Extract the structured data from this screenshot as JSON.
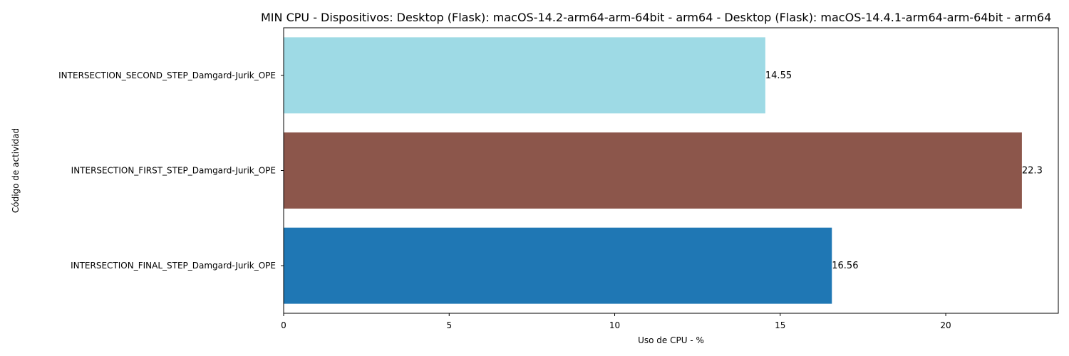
{
  "chart_data": {
    "type": "bar",
    "orientation": "horizontal",
    "title": "MIN CPU - Dispositivos: Desktop (Flask): macOS-14.2-arm64-arm-64bit - arm64 - Desktop (Flask): macOS-14.4.1-arm64-arm-64bit - arm64",
    "xlabel": "Uso de CPU - %",
    "ylabel": "Código de actividad",
    "categories": [
      "INTERSECTION_FINAL_STEP_Damgard-Jurik_OPE",
      "INTERSECTION_FIRST_STEP_Damgard-Jurik_OPE",
      "INTERSECTION_SECOND_STEP_Damgard-Jurik_OPE"
    ],
    "values": [
      16.56,
      22.3,
      14.55
    ],
    "value_labels": [
      "16.56",
      "22.3",
      "14.55"
    ],
    "colors": [
      "#1f77b4",
      "#8c564b",
      "#9edae5"
    ],
    "xlim": [
      0,
      23.4
    ],
    "xticks": [
      0,
      5,
      10,
      15,
      20
    ],
    "grid": false,
    "legend": "none"
  }
}
